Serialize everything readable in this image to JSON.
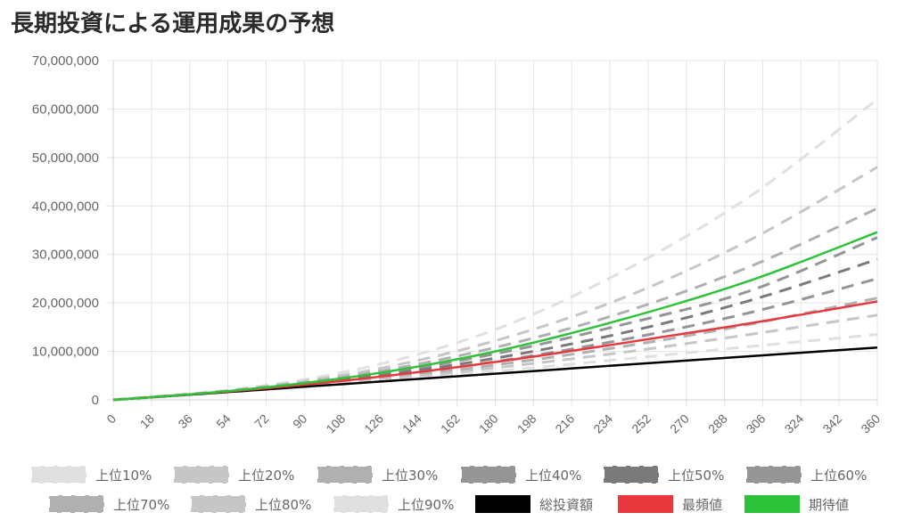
{
  "title": "長期投資による運用成果の予想",
  "chart_data": {
    "type": "line",
    "title": "長期投資による運用成果の予想",
    "xlabel": "",
    "ylabel": "",
    "x_ticks": [
      "0",
      "18",
      "36",
      "54",
      "72",
      "90",
      "108",
      "126",
      "144",
      "162",
      "180",
      "198",
      "216",
      "234",
      "252",
      "270",
      "288",
      "306",
      "324",
      "342",
      "360"
    ],
    "xlim": [
      0,
      360
    ],
    "ylim": [
      0,
      70000000
    ],
    "y_ticks": [
      "0",
      "10,000,000",
      "20,000,000",
      "30,000,000",
      "40,000,000",
      "50,000,000",
      "60,000,000",
      "70,000,000"
    ],
    "y_tick_values": [
      0,
      10000000,
      20000000,
      30000000,
      40000000,
      50000000,
      60000000,
      70000000
    ],
    "grid": true,
    "legend_position": "bottom",
    "series": [
      {
        "name": "上位10%",
        "color": "#e0e0e0",
        "dashed": true,
        "x": [
          0,
          60,
          120,
          180,
          240,
          300,
          360
        ],
        "y": [
          0,
          2300000,
          6800000,
          14500000,
          26500000,
          42000000,
          62000000
        ]
      },
      {
        "name": "上位20%",
        "color": "#c6c6c6",
        "dashed": true,
        "x": [
          0,
          60,
          120,
          180,
          240,
          300,
          360
        ],
        "y": [
          0,
          2200000,
          6000000,
          12200000,
          21000000,
          33000000,
          48000000
        ]
      },
      {
        "name": "上位30%",
        "color": "#b0b0b0",
        "dashed": true,
        "x": [
          0,
          60,
          120,
          180,
          240,
          300,
          360
        ],
        "y": [
          0,
          2100000,
          5500000,
          10800000,
          18000000,
          27500000,
          39500000
        ]
      },
      {
        "name": "上位40%",
        "color": "#959595",
        "dashed": true,
        "x": [
          0,
          60,
          120,
          180,
          240,
          300,
          360
        ],
        "y": [
          0,
          2000000,
          5000000,
          9500000,
          15500000,
          22500000,
          33500000
        ]
      },
      {
        "name": "上位50%",
        "color": "#7a7a7a",
        "dashed": true,
        "x": [
          0,
          60,
          120,
          180,
          240,
          300,
          360
        ],
        "y": [
          0,
          1950000,
          4700000,
          8600000,
          13800000,
          20500000,
          29000000
        ]
      },
      {
        "name": "上位60%",
        "color": "#959595",
        "dashed": true,
        "x": [
          0,
          60,
          120,
          180,
          240,
          300,
          360
        ],
        "y": [
          0,
          1900000,
          4400000,
          7900000,
          12400000,
          18000000,
          25000000
        ]
      },
      {
        "name": "上位70%",
        "color": "#b0b0b0",
        "dashed": true,
        "x": [
          0,
          60,
          120,
          180,
          240,
          300,
          360
        ],
        "y": [
          0,
          1850000,
          4100000,
          7200000,
          11000000,
          15600000,
          21000000
        ]
      },
      {
        "name": "上位80%",
        "color": "#c6c6c6",
        "dashed": true,
        "x": [
          0,
          60,
          120,
          180,
          240,
          300,
          360
        ],
        "y": [
          0,
          1800000,
          3900000,
          6600000,
          9800000,
          13500000,
          17500000
        ]
      },
      {
        "name": "上位90%",
        "color": "#e0e0e0",
        "dashed": true,
        "x": [
          0,
          60,
          120,
          180,
          240,
          300,
          360
        ],
        "y": [
          0,
          1750000,
          3650000,
          5900000,
          8400000,
          11000000,
          13500000
        ]
      },
      {
        "name": "総投資額",
        "color": "#000000",
        "dashed": false,
        "x": [
          0,
          60,
          120,
          180,
          240,
          300,
          360
        ],
        "y": [
          0,
          1800000,
          3600000,
          5400000,
          7200000,
          9000000,
          10800000
        ]
      },
      {
        "name": "最頻値",
        "color": "#e8383d",
        "dashed": false,
        "x": [
          0,
          60,
          120,
          180,
          240,
          300,
          360
        ],
        "y": [
          0,
          1950000,
          4500000,
          7800000,
          11700000,
          15800000,
          20300000
        ]
      },
      {
        "name": "期待値",
        "color": "#2ec23a",
        "dashed": false,
        "x": [
          0,
          60,
          120,
          180,
          240,
          300,
          360
        ],
        "y": [
          0,
          2050000,
          5200000,
          10000000,
          16600000,
          24600000,
          34600000
        ]
      }
    ]
  }
}
